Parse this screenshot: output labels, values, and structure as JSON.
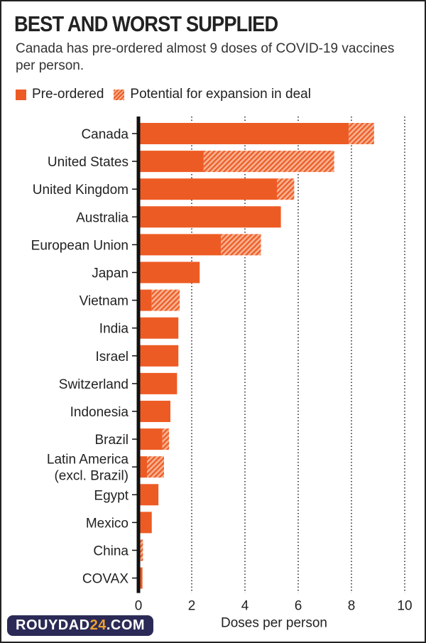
{
  "colors": {
    "preordered": "#ed5b24",
    "potential_light": "#f7b08f",
    "axis": "#111111"
  },
  "watermark": {
    "text_a": "ROUYDAD",
    "text_b": "24",
    ".com": ".COM",
    "text_c": ".COM"
  },
  "chart_data": {
    "type": "bar",
    "orientation": "horizontal",
    "stacked": true,
    "title": "BEST AND WORST SUPPLIED",
    "subtitle": "Canada has pre-ordered almost 9 doses of COVID-19 vaccines per person.",
    "xlabel": "Doses per person",
    "ylabel": "",
    "xlim": [
      0,
      10
    ],
    "xticks": [
      "0",
      "2",
      "4",
      "6",
      "8",
      "10"
    ],
    "grid": "vertical dotted",
    "legend_position": "top-left",
    "categories": [
      "Canada",
      "United States",
      "United Kingdom",
      "Australia",
      "European Union",
      "Japan",
      "Vietnam",
      "India",
      "Israel",
      "Switzerland",
      "Indonesia",
      "Brazil",
      "Latin America\n(excl. Brazil)",
      "Egypt",
      "Mexico",
      "China",
      "COVAX"
    ],
    "series": [
      {
        "name": "Pre-ordered",
        "values": [
          7.9,
          2.45,
          5.2,
          5.35,
          3.1,
          2.3,
          0.5,
          1.5,
          1.5,
          1.45,
          1.2,
          0.9,
          0.32,
          0.75,
          0.5,
          0.0,
          0.15
        ]
      },
      {
        "name": "Potential for expansion in deal",
        "values": [
          0.95,
          4.9,
          0.65,
          0,
          1.5,
          0,
          1.05,
          0,
          0,
          0,
          0,
          0.25,
          0.64,
          0,
          0,
          0.17,
          0
        ]
      }
    ]
  }
}
